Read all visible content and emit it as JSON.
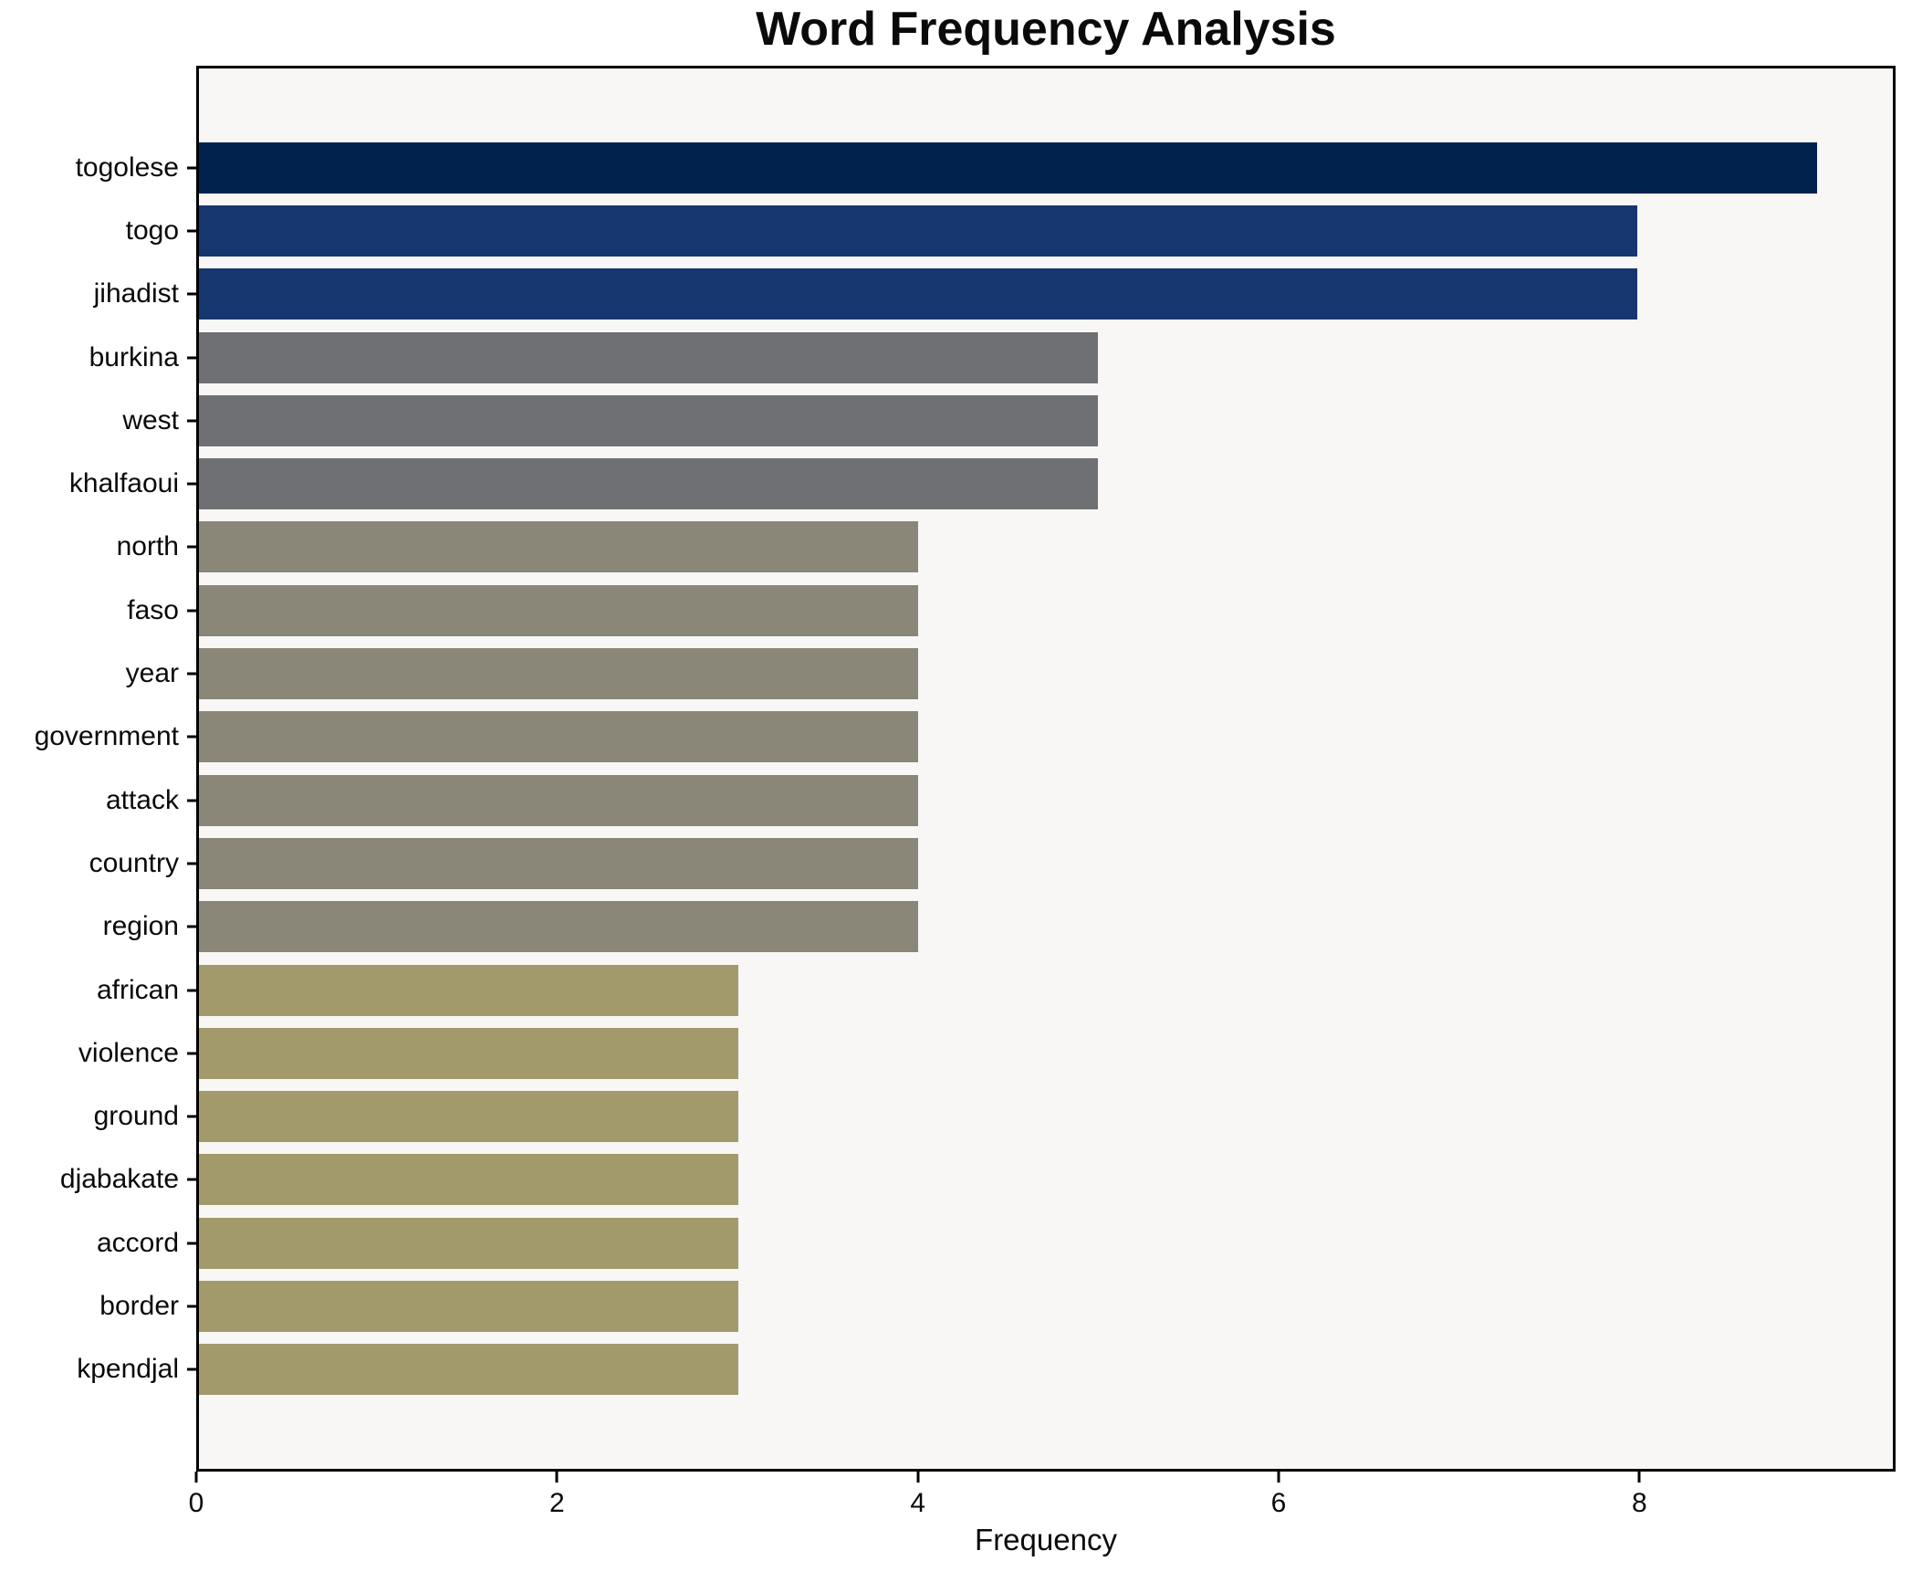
{
  "chart_data": {
    "type": "bar",
    "orientation": "horizontal",
    "title": "Word Frequency Analysis",
    "xlabel": "Frequency",
    "ylabel": "",
    "categories": [
      "togolese",
      "togo",
      "jihadist",
      "burkina",
      "west",
      "khalfaoui",
      "north",
      "faso",
      "year",
      "government",
      "attack",
      "country",
      "region",
      "african",
      "violence",
      "ground",
      "djabakate",
      "accord",
      "border",
      "kpendjal"
    ],
    "values": [
      9,
      8,
      8,
      5,
      5,
      5,
      4,
      4,
      4,
      4,
      4,
      4,
      4,
      3,
      3,
      3,
      3,
      3,
      3,
      3
    ],
    "bar_colors": [
      "#02224e",
      "#163670",
      "#163670",
      "#6f7073",
      "#6f7073",
      "#6f7073",
      "#8a8678",
      "#8a8678",
      "#8a8678",
      "#8a8678",
      "#8a8678",
      "#8a8678",
      "#8a8678",
      "#a39a6b",
      "#a39a6b",
      "#a39a6b",
      "#a39a6b",
      "#a39a6b",
      "#a39a6b",
      "#a39a6b"
    ],
    "xlim": [
      0,
      9.42
    ],
    "xticks": [
      0,
      2,
      4,
      6,
      8
    ],
    "grid": "off",
    "legend": "none",
    "plot_background": "#f8f7f5",
    "figure_background": "#ffffff",
    "spine_color": "#000000",
    "text_color": "#0a0a0a"
  }
}
